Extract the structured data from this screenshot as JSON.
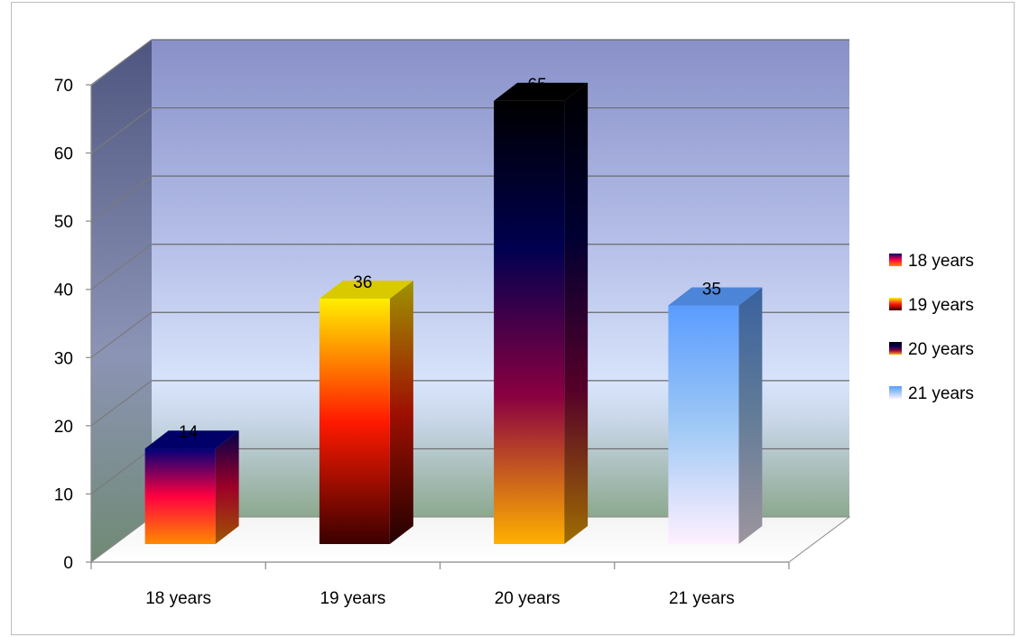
{
  "chart_data": {
    "type": "bar",
    "categories": [
      "18 years",
      "19 years",
      "20 years",
      "21 years"
    ],
    "values": [
      14,
      36,
      65,
      35
    ],
    "data_labels": [
      "14",
      "36",
      "65",
      "35"
    ],
    "series": [
      {
        "name": "18 years",
        "value": 14,
        "colors": [
          "#00007a",
          "#ff0040",
          "#ff8a00"
        ]
      },
      {
        "name": "19 years",
        "value": 36,
        "colors": [
          "#ffee00",
          "#ff1a00",
          "#3a0000"
        ]
      },
      {
        "name": "20 years",
        "value": 65,
        "colors": [
          "#000000",
          "#000050",
          "#8a0040",
          "#ffb000"
        ]
      },
      {
        "name": "21 years",
        "value": 35,
        "colors": [
          "#5a9cff",
          "#9ec8f5",
          "#fff0ff"
        ]
      }
    ],
    "yticks": [
      "0",
      "10",
      "20",
      "30",
      "40",
      "50",
      "60",
      "70"
    ],
    "ylim": [
      0,
      70
    ],
    "title": "",
    "xlabel": "",
    "ylabel": "",
    "grid": true,
    "three_d": true,
    "legend_position": "right"
  }
}
